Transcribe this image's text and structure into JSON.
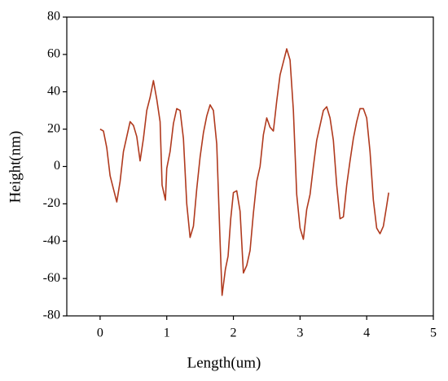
{
  "chart_data": {
    "type": "line",
    "x_label": "Length(um)",
    "y_label": "Height(nm)",
    "x": [
      0,
      0.05,
      0.1,
      0.15,
      0.2,
      0.25,
      0.3,
      0.35,
      0.4,
      0.45,
      0.5,
      0.55,
      0.6,
      0.65,
      0.7,
      0.75,
      0.8,
      0.85,
      0.9,
      0.93,
      0.98,
      1,
      1.05,
      1.1,
      1.15,
      1.2,
      1.25,
      1.3,
      1.35,
      1.4,
      1.45,
      1.5,
      1.55,
      1.6,
      1.65,
      1.7,
      1.75,
      1.8,
      1.83,
      1.88,
      1.92,
      1.96,
      2,
      2.05,
      2.1,
      2.15,
      2.2,
      2.25,
      2.3,
      2.35,
      2.4,
      2.45,
      2.5,
      2.55,
      2.6,
      2.65,
      2.7,
      2.75,
      2.8,
      2.85,
      2.9,
      2.95,
      3,
      3.05,
      3.1,
      3.15,
      3.2,
      3.25,
      3.3,
      3.35,
      3.4,
      3.45,
      3.5,
      3.55,
      3.6,
      3.65,
      3.7,
      3.75,
      3.8,
      3.85,
      3.9,
      3.95,
      4,
      4.05,
      4.1,
      4.15,
      4.2,
      4.25,
      4.3,
      4.33
    ],
    "series": [
      {
        "color": "#b03a1e",
        "values": [
          20,
          19,
          10,
          -5,
          -12,
          -19,
          -8,
          8,
          16,
          24,
          22,
          16,
          3,
          15,
          30,
          37,
          46,
          36,
          24,
          -10,
          -18,
          -1,
          8,
          23,
          31,
          30,
          15,
          -20,
          -38,
          -32,
          -12,
          5,
          18,
          27,
          33,
          30,
          12,
          -40,
          -69,
          -55,
          -48,
          -28,
          -14,
          -13,
          -24,
          -57,
          -53,
          -45,
          -25,
          -8,
          0,
          17,
          26,
          21,
          19,
          35,
          49,
          56,
          63,
          57,
          30,
          -15,
          -33,
          -39,
          -23,
          -15,
          0,
          14,
          22,
          30,
          32,
          26,
          14,
          -10,
          -28,
          -27,
          -10,
          3,
          15,
          24,
          31,
          31,
          26,
          8,
          -18,
          -33,
          -36,
          -32,
          -21,
          -14
        ]
      }
    ],
    "xlim": [
      -0.5,
      5
    ],
    "xticks": [
      0,
      1,
      2,
      3,
      4,
      5
    ],
    "ylim": [
      -80,
      80
    ],
    "yticks": [
      -80,
      -60,
      -40,
      -20,
      0,
      20,
      40,
      60,
      80
    ]
  }
}
